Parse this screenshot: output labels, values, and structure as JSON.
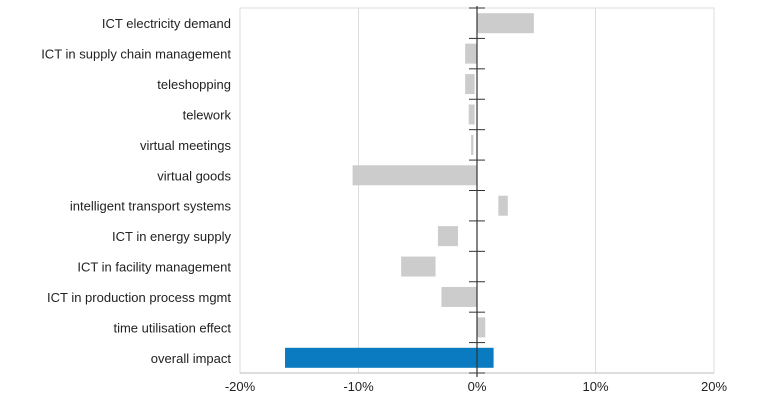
{
  "chart_data": {
    "type": "bar",
    "orientation": "horizontal",
    "title": "",
    "xlabel": "",
    "ylabel": "",
    "xlim": [
      -20,
      20
    ],
    "xticks": [
      {
        "value": -20,
        "label": "-20%"
      },
      {
        "value": -10,
        "label": "-10%"
      },
      {
        "value": 0,
        "label": "0%"
      },
      {
        "value": 10,
        "label": "10%"
      },
      {
        "value": 20,
        "label": "20%"
      }
    ],
    "grid": true,
    "categories": [
      "ICT electricity demand",
      "ICT in supply chain management",
      "teleshopping",
      "telework",
      "virtual meetings",
      "virtual goods",
      "intelligent transport systems",
      "ICT in energy supply",
      "ICT in facility management",
      "ICT in production process mgmt",
      "time utilisation effect",
      "overall impact"
    ],
    "bars": [
      {
        "start": 0,
        "end": 4.8
      },
      {
        "start": -1.0,
        "end": 0
      },
      {
        "start": -1.0,
        "end": -0.2
      },
      {
        "start": -0.7,
        "end": -0.2
      },
      {
        "start": -0.5,
        "end": -0.3
      },
      {
        "start": -10.5,
        "end": 0
      },
      {
        "start": 1.8,
        "end": 2.6
      },
      {
        "start": -3.3,
        "end": -1.6
      },
      {
        "start": -6.4,
        "end": -3.5
      },
      {
        "start": -3.0,
        "end": 0
      },
      {
        "start": 0,
        "end": 0.7
      },
      {
        "start": -16.2,
        "end": 1.4
      }
    ],
    "colors": {
      "bar": "#cccccc",
      "highlight": "#0a7ac1",
      "grid": "#dddddd",
      "axis": "#333333"
    }
  }
}
